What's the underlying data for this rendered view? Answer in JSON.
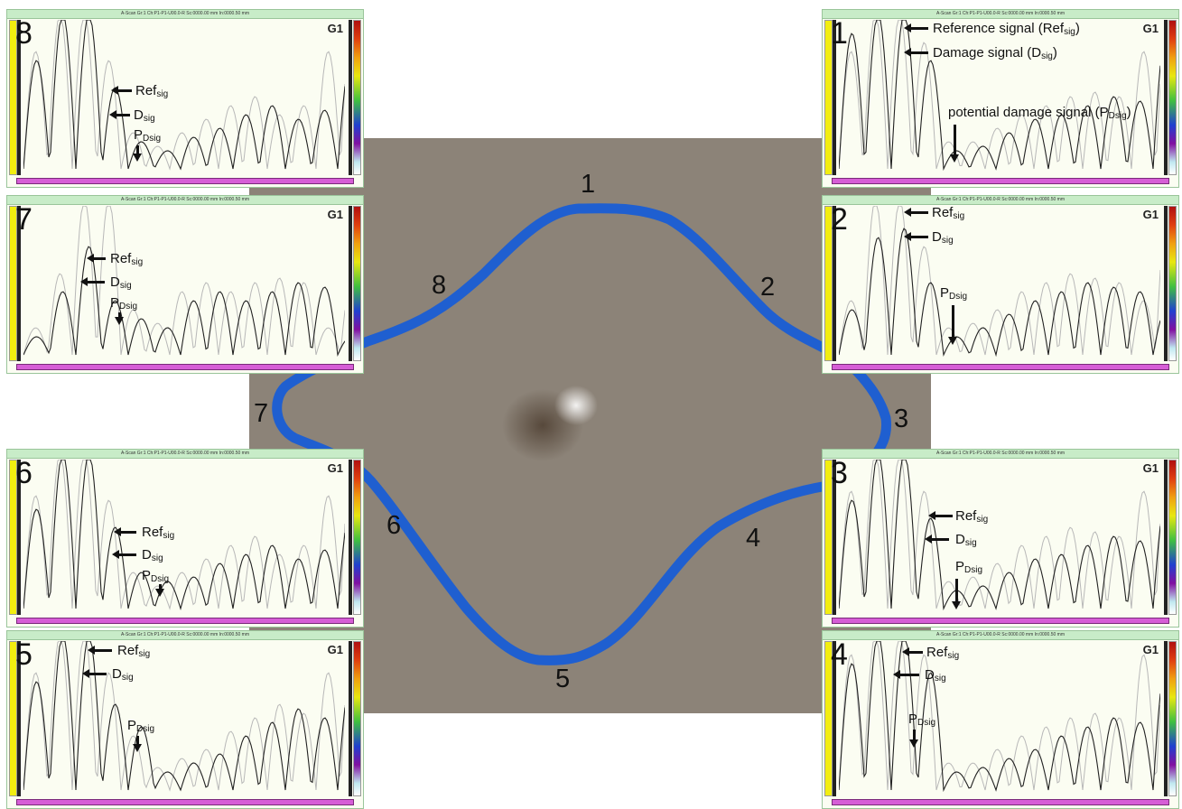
{
  "scan_header": "A-Scan Gr:1 Ch:P1-P1-U00.0-R Sc:0000.00 mm In:0000.50 mm",
  "gain_tag": "G1",
  "annotations": {
    "ref_full_text": "Reference signal (Ref",
    "damage_full_text": "Damage signal (D",
    "potential_full_text": "potential damage signal (P",
    "ref": "Ref",
    "d": "D",
    "p": "P",
    "sub_sig": "sig",
    "sub_dsig": "Dsig",
    "close_paren": ")"
  },
  "points": [
    {
      "id": "1",
      "label": "1"
    },
    {
      "id": "2",
      "label": "2"
    },
    {
      "id": "3",
      "label": "3"
    },
    {
      "id": "4",
      "label": "4"
    },
    {
      "id": "5",
      "label": "5"
    },
    {
      "id": "6",
      "label": "6"
    },
    {
      "id": "7",
      "label": "7"
    },
    {
      "id": "8",
      "label": "8"
    }
  ],
  "panels": [
    {
      "id": "8",
      "number": "8",
      "side": "left"
    },
    {
      "id": "7",
      "number": "7",
      "side": "left"
    },
    {
      "id": "6",
      "number": "6",
      "side": "left"
    },
    {
      "id": "5",
      "number": "5",
      "side": "left"
    },
    {
      "id": "1",
      "number": "1",
      "side": "right"
    },
    {
      "id": "2",
      "number": "2",
      "side": "right"
    },
    {
      "id": "3",
      "number": "3",
      "side": "right"
    },
    {
      "id": "4",
      "number": "4",
      "side": "right"
    }
  ],
  "colors": {
    "tape": "#1f5fd0",
    "plate": "#8c8378",
    "panel_bg": "#fbfdf2",
    "trace_damage": "#222222",
    "trace_reference": "#b8b8b8"
  }
}
